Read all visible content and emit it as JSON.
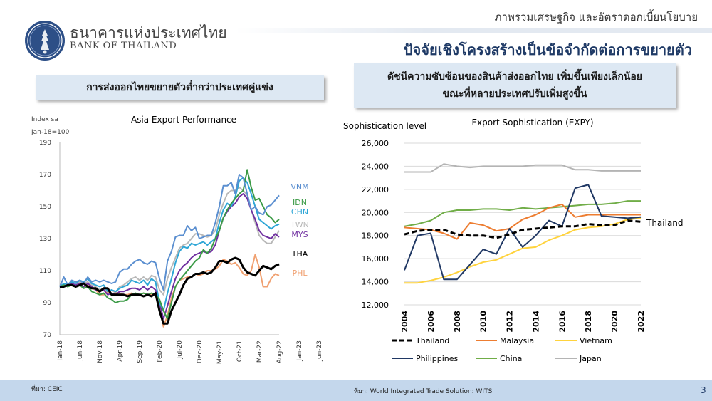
{
  "header": {
    "section_title": "ภาพรวมเศรษฐกิจ และอัตราดอกเบี้ยนโยบาย",
    "slide_title": "ปัจจัยเชิงโครงสร้างเป็นข้อจำกัดต่อการขยายตัว",
    "bank_name_thai": "ธนาคารแห่งประเทศไทย",
    "bank_name_en": "BANK OF THAILAND"
  },
  "left_panel": {
    "callout": "การส่งออกไทยขยายตัวต่ำกว่าประเทศคู่แข่ง",
    "source": "ที่มา: CEIC"
  },
  "right_panel": {
    "callout_line1": "ดัชนีความซับซ้อนของสินค้าส่งออกไทย เพิ่มขึ้นเพียงเล็กน้อย",
    "callout_line2": "ขณะที่หลายประเทศปรับเพิ่มสูงขึ้น",
    "source": "ที่มา: World Integrated Trade Solution: WITS"
  },
  "footer": {
    "page_number": "3"
  },
  "colors": {
    "VNM": "#5b8fd0",
    "IDN": "#3a9a45",
    "CHN": "#2ea6d6",
    "TWN": "#b8b8b8",
    "MYS": "#7030a0",
    "THA": "#000000",
    "PHL": "#f0a070",
    "Thailand": "#000000",
    "Malaysia": "#ed7d31",
    "Vietnam": "#ffd33d",
    "Philippines": "#203864",
    "China": "#70ad47",
    "Japan": "#b4b4b4"
  },
  "chart_data": [
    {
      "type": "line",
      "title": "Asia Export Performance",
      "ylabel": "Index sa",
      "ylabel2": "Jan-18=100",
      "ylim": [
        70,
        190
      ],
      "yticks": [
        70,
        90,
        110,
        130,
        150,
        170,
        190
      ],
      "xticks": [
        "Jan-18",
        "Jun-18",
        "Nov-18",
        "Apr-19",
        "Sep-19",
        "Feb-20",
        "Jul-20",
        "Dec-20",
        "May-21",
        "Oct-21",
        "Mar-22",
        "Aug-22",
        "Jan-23",
        "Jun-23"
      ],
      "series": [
        {
          "name": "VNM",
          "values": [
            100,
            106,
            101,
            104,
            103,
            104,
            102,
            106,
            103,
            104,
            103,
            104,
            103,
            102,
            103,
            109,
            111,
            111,
            114,
            116,
            117,
            115,
            114,
            116,
            115,
            105,
            98,
            116,
            122,
            131,
            132,
            132,
            138,
            135,
            137,
            130,
            131,
            132,
            132,
            140,
            150,
            163,
            163,
            165,
            158,
            170,
            168,
            158,
            148,
            150,
            146,
            145,
            150,
            151,
            154,
            157
          ]
        },
        {
          "name": "IDN",
          "values": [
            100,
            101,
            100,
            101,
            100,
            101,
            99,
            100,
            97,
            96,
            95,
            96,
            93,
            92,
            90,
            91,
            91,
            92,
            95,
            96,
            95,
            96,
            95,
            96,
            95,
            92,
            85,
            80,
            90,
            100,
            104,
            107,
            110,
            113,
            116,
            118,
            123,
            121,
            124,
            130,
            135,
            143,
            148,
            152,
            155,
            158,
            160,
            173,
            162,
            154,
            155,
            150,
            145,
            143,
            140,
            142
          ]
        },
        {
          "name": "CHN",
          "values": [
            100,
            102,
            101,
            103,
            102,
            104,
            103,
            105,
            102,
            101,
            100,
            101,
            97,
            98,
            97,
            99,
            100,
            101,
            104,
            103,
            102,
            104,
            101,
            105,
            103,
            90,
            85,
            96,
            105,
            115,
            122,
            125,
            124,
            127,
            126,
            127,
            128,
            126,
            128,
            130,
            140,
            148,
            152,
            150,
            156,
            166,
            168,
            165,
            158,
            150,
            142,
            140,
            138,
            136,
            138,
            139
          ]
        },
        {
          "name": "TWN",
          "values": [
            100,
            101,
            101,
            102,
            101,
            103,
            102,
            103,
            101,
            100,
            98,
            99,
            96,
            98,
            96,
            100,
            101,
            103,
            105,
            106,
            104,
            106,
            104,
            107,
            106,
            98,
            95,
            105,
            112,
            118,
            124,
            126,
            127,
            130,
            133,
            133,
            132,
            131,
            132,
            135,
            145,
            152,
            158,
            160,
            160,
            162,
            160,
            157,
            148,
            140,
            132,
            129,
            127,
            127,
            131,
            135
          ]
        },
        {
          "name": "MYS",
          "values": [
            100,
            101,
            100,
            102,
            101,
            102,
            100,
            102,
            100,
            98,
            97,
            98,
            95,
            96,
            95,
            97,
            97,
            98,
            99,
            99,
            98,
            100,
            98,
            100,
            98,
            90,
            80,
            88,
            97,
            105,
            110,
            113,
            115,
            118,
            120,
            121,
            122,
            121,
            122,
            126,
            135,
            143,
            147,
            150,
            152,
            156,
            158,
            155,
            148,
            142,
            135,
            132,
            131,
            130,
            133,
            131
          ]
        },
        {
          "name": "THA",
          "values": [
            100,
            100,
            101,
            101,
            100,
            101,
            102,
            100,
            99,
            99,
            97,
            99,
            99,
            95,
            95,
            95,
            95,
            94,
            95,
            95,
            95,
            94,
            95,
            94,
            96,
            85,
            77,
            77,
            85,
            90,
            95,
            101,
            105,
            106,
            108,
            108,
            109,
            108,
            109,
            112,
            116,
            116,
            115,
            117,
            118,
            117,
            112,
            109,
            108,
            107,
            110,
            113,
            112,
            111,
            113,
            114
          ]
        },
        {
          "name": "PHL",
          "values": [
            100,
            101,
            100,
            101,
            100,
            101,
            100,
            101,
            99,
            98,
            95,
            95,
            97,
            95,
            96,
            96,
            95,
            95,
            96,
            95,
            95,
            96,
            95,
            95,
            95,
            88,
            75,
            82,
            93,
            100,
            104,
            105,
            106,
            106,
            108,
            107,
            108,
            110,
            110,
            111,
            113,
            117,
            116,
            114,
            115,
            112,
            108,
            107,
            110,
            120,
            112,
            100,
            100,
            105,
            108,
            107
          ]
        }
      ]
    },
    {
      "type": "line",
      "title": "Export Sophistication (EXPY)",
      "ylabel": "Sophistication level",
      "ylim": [
        12000,
        26000
      ],
      "yticks": [
        "12,000",
        "14,000",
        "16,000",
        "18,000",
        "20,000",
        "22,000",
        "24,000",
        "26,000"
      ],
      "x": [
        2004,
        2005,
        2006,
        2007,
        2008,
        2009,
        2010,
        2011,
        2012,
        2013,
        2014,
        2015,
        2016,
        2017,
        2018,
        2019,
        2020,
        2021,
        2022
      ],
      "xticks": [
        "2004",
        "2006",
        "2008",
        "2010",
        "2012",
        "2014",
        "2016",
        "2018",
        "2020",
        "2022"
      ],
      "annotation": "Thailand",
      "series": [
        {
          "name": "Thailand",
          "values": [
            18100,
            18400,
            18500,
            18500,
            18100,
            18000,
            18000,
            17800,
            18100,
            18500,
            18600,
            18700,
            18800,
            18800,
            19000,
            18900,
            18900,
            19300,
            19200
          ]
        },
        {
          "name": "Malaysia",
          "values": [
            18700,
            18600,
            18500,
            18200,
            17700,
            19100,
            18900,
            18400,
            18600,
            19400,
            19800,
            20400,
            20700,
            19600,
            19800,
            19800,
            19800,
            19800,
            19800
          ]
        },
        {
          "name": "Vietnam",
          "values": [
            13900,
            13900,
            14100,
            14400,
            14800,
            15300,
            15700,
            15900,
            16400,
            16900,
            17000,
            17600,
            18000,
            18500,
            18700,
            18800,
            19000,
            19400,
            19500
          ]
        },
        {
          "name": "Philippines",
          "values": [
            15000,
            18000,
            18200,
            14200,
            14200,
            15500,
            16800,
            16400,
            18600,
            17000,
            18000,
            19300,
            18800,
            22100,
            22400,
            19700,
            19600,
            19500,
            19600
          ]
        },
        {
          "name": "China",
          "values": [
            18800,
            19000,
            19300,
            20000,
            20200,
            20200,
            20300,
            20300,
            20200,
            20400,
            20300,
            20400,
            20500,
            20600,
            20700,
            20700,
            20800,
            21000,
            21000
          ]
        },
        {
          "name": "Japan",
          "values": [
            23500,
            23500,
            23500,
            24200,
            24000,
            23900,
            24000,
            24000,
            24000,
            24000,
            24100,
            24100,
            24100,
            23700,
            23700,
            23600,
            23600,
            23600,
            23600
          ]
        }
      ],
      "legend": [
        "Thailand",
        "Malaysia",
        "Vietnam",
        "Philippines",
        "China",
        "Japan"
      ]
    }
  ]
}
